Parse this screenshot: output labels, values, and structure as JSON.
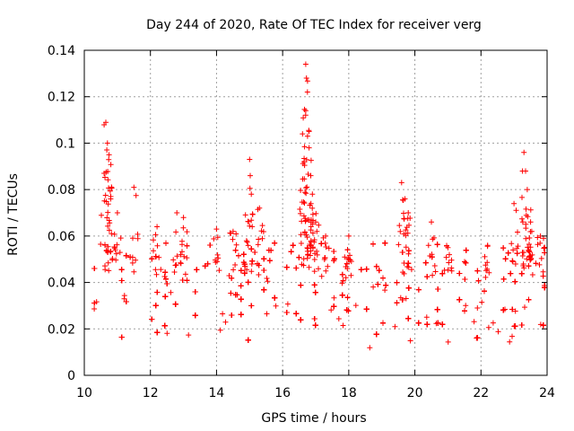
{
  "chart_data": {
    "type": "scatter",
    "title": "Day 244 of 2020, Rate Of TEC Index for receiver verg",
    "xlabel": "GPS time / hours",
    "ylabel": "ROTI / TECUs",
    "xlim": [
      10,
      24
    ],
    "ylim": [
      0,
      0.14
    ],
    "xticks": [
      "10",
      "12",
      "14",
      "16",
      "18",
      "20",
      "22",
      "24"
    ],
    "xtick_values": [
      10,
      12,
      14,
      16,
      18,
      20,
      22,
      24
    ],
    "yticks": [
      "0",
      "0.02",
      "0.04",
      "0.06",
      "0.08",
      "0.1",
      "0.12",
      "0.14"
    ],
    "ytick_values": [
      0,
      0.02,
      0.04,
      0.06,
      0.08,
      0.1,
      0.12,
      0.14
    ],
    "grid": true,
    "marker": "+",
    "color": "#ff0000",
    "series": [
      {
        "name": "ROTI",
        "x_range": [
          10.3,
          24.0
        ],
        "baseline_range": [
          0.01,
          0.04
        ],
        "peaks": [
          {
            "x": 10.65,
            "y": 0.109
          },
          {
            "x": 10.7,
            "y": 0.1
          },
          {
            "x": 10.75,
            "y": 0.095
          },
          {
            "x": 10.6,
            "y": 0.087
          },
          {
            "x": 10.8,
            "y": 0.077
          },
          {
            "x": 11.0,
            "y": 0.07
          },
          {
            "x": 11.5,
            "y": 0.081
          },
          {
            "x": 12.2,
            "y": 0.064
          },
          {
            "x": 12.8,
            "y": 0.07
          },
          {
            "x": 13.0,
            "y": 0.068
          },
          {
            "x": 14.0,
            "y": 0.063
          },
          {
            "x": 14.5,
            "y": 0.062
          },
          {
            "x": 15.0,
            "y": 0.093
          },
          {
            "x": 15.02,
            "y": 0.086
          },
          {
            "x": 15.3,
            "y": 0.072
          },
          {
            "x": 16.7,
            "y": 0.134
          },
          {
            "x": 16.72,
            "y": 0.128
          },
          {
            "x": 16.75,
            "y": 0.122
          },
          {
            "x": 16.7,
            "y": 0.114
          },
          {
            "x": 16.6,
            "y": 0.104
          },
          {
            "x": 16.8,
            "y": 0.098
          },
          {
            "x": 16.65,
            "y": 0.092
          },
          {
            "x": 16.85,
            "y": 0.086
          },
          {
            "x": 16.9,
            "y": 0.078
          },
          {
            "x": 17.0,
            "y": 0.066
          },
          {
            "x": 17.3,
            "y": 0.06
          },
          {
            "x": 18.0,
            "y": 0.06
          },
          {
            "x": 19.6,
            "y": 0.083
          },
          {
            "x": 19.7,
            "y": 0.076
          },
          {
            "x": 19.8,
            "y": 0.07
          },
          {
            "x": 20.5,
            "y": 0.066
          },
          {
            "x": 21.0,
            "y": 0.055
          },
          {
            "x": 22.2,
            "y": 0.056
          },
          {
            "x": 23.0,
            "y": 0.074
          },
          {
            "x": 23.3,
            "y": 0.096
          },
          {
            "x": 23.35,
            "y": 0.088
          },
          {
            "x": 23.4,
            "y": 0.08
          },
          {
            "x": 23.5,
            "y": 0.066
          },
          {
            "x": 23.8,
            "y": 0.06
          }
        ]
      }
    ]
  }
}
